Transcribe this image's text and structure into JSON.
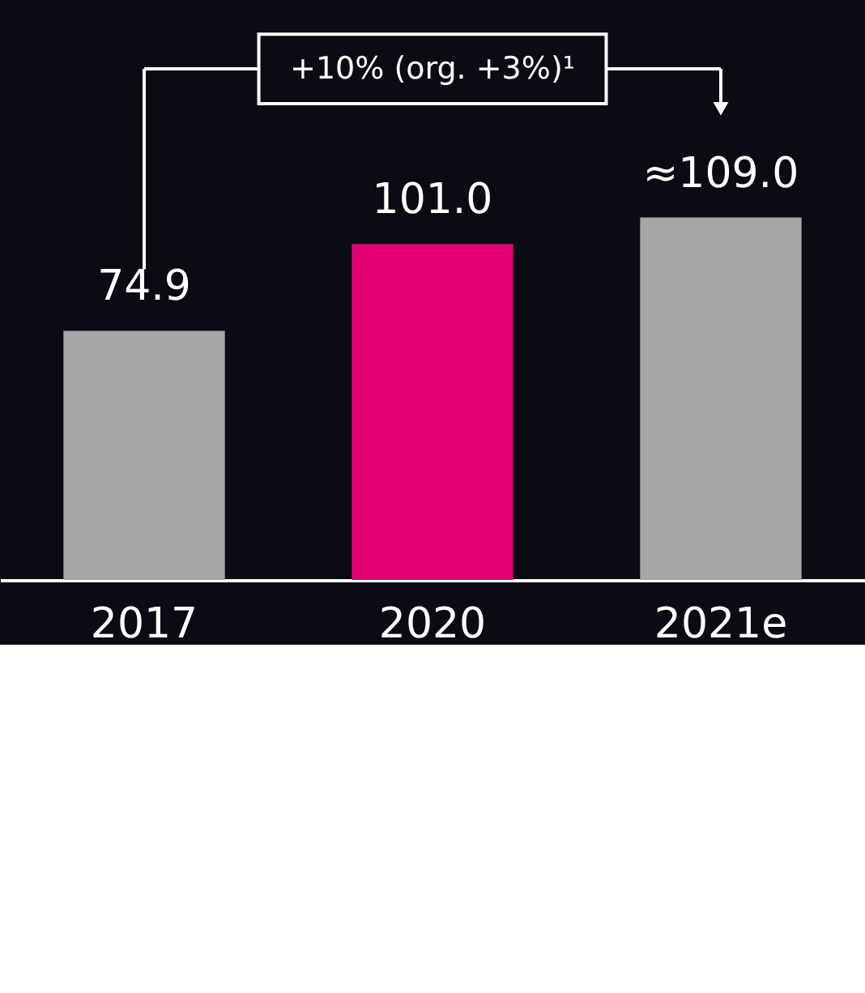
{
  "chart_data": {
    "type": "bar",
    "categories": [
      "2017",
      "2020",
      "2021e"
    ],
    "values": [
      74.9,
      101.0,
      109.0
    ],
    "colors": [
      "#a6a6a6",
      "#e20074",
      "#a6a6a6"
    ],
    "value_labels": [
      "74.9",
      "101.0",
      "≈109.0"
    ],
    "annotations": [
      "+10% (org. +3%)¹"
    ],
    "grid": false
  }
}
